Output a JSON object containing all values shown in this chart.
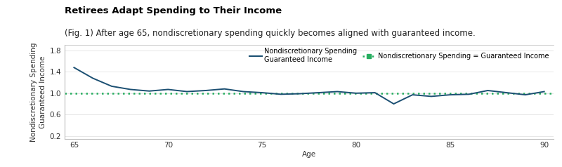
{
  "title": "Retirees Adapt Spending to Their Income",
  "subtitle": "(Fig. 1) After age 65, nondiscretionary spending quickly becomes aligned with guaranteed income.",
  "ylabel_line1": "Nondiscretionary Spending",
  "ylabel_line2": "Guaranteed Income",
  "xlabel": "Age",
  "line_color": "#1b4f72",
  "dotted_color": "#27ae60",
  "dotted_value": 1.0,
  "ages": [
    65,
    66,
    67,
    68,
    69,
    70,
    71,
    72,
    73,
    74,
    75,
    76,
    77,
    78,
    79,
    80,
    81,
    82,
    83,
    84,
    85,
    86,
    87,
    88,
    89,
    90
  ],
  "values": [
    1.48,
    1.28,
    1.13,
    1.07,
    1.04,
    1.07,
    1.03,
    1.05,
    1.08,
    1.03,
    1.01,
    0.98,
    0.99,
    1.01,
    1.03,
    1.0,
    1.01,
    0.8,
    0.97,
    0.94,
    0.97,
    0.98,
    1.05,
    1.01,
    0.97,
    1.03
  ],
  "ylim": [
    0.15,
    1.9
  ],
  "yticks": [
    0.2,
    0.6,
    1.0,
    1.4,
    1.8
  ],
  "xticks": [
    65,
    70,
    75,
    80,
    85,
    90
  ],
  "legend1_label_line1": "Nondiscretionary Spending",
  "legend1_label_line2": "Guaranteed Income",
  "legend2_label": "Nondiscretionary Spending = Guaranteed Income",
  "title_fontsize": 9.5,
  "subtitle_fontsize": 8.5,
  "axis_fontsize": 7.5,
  "tick_fontsize": 7.5,
  "background_color": "#ffffff",
  "line_width": 1.4
}
